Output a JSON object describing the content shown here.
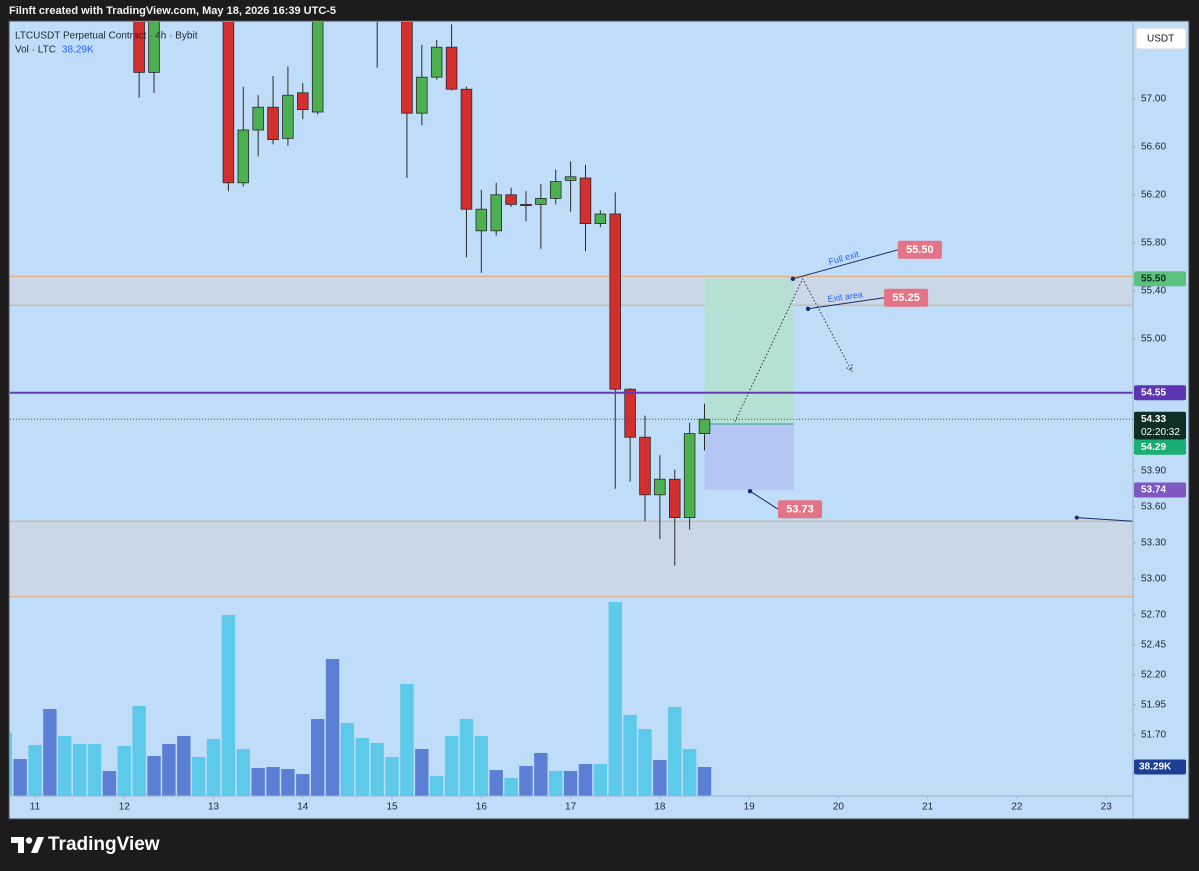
{
  "header": {
    "text": "Filnft created with TradingView.com, May 18, 2026 16:39 UTC-5"
  },
  "footer": {
    "brand": "TradingView"
  },
  "chart_data": {
    "type": "candlestick",
    "title": "LTCUSDT Perpetual Contract · 4h · Bybit",
    "currency": "USDT",
    "x": [
      10.6667,
      10.8333,
      11,
      11.1667,
      11.3333,
      11.5,
      11.6667,
      11.8333,
      12,
      12.1667,
      12.3333,
      12.5,
      12.6667,
      12.8333,
      13,
      13.1667,
      13.3333,
      13.5,
      13.6667,
      13.8333,
      14,
      14.1667,
      14.3333,
      14.5,
      14.6667,
      14.8333,
      15,
      15.1667,
      15.3333,
      15.5,
      15.6667,
      15.8333,
      16,
      16.1667,
      16.3333,
      16.5,
      16.6667,
      16.8333,
      17,
      17.1667,
      17.3333,
      17.5,
      17.6667,
      17.8333,
      18,
      18.1667,
      18.3333,
      18.5
    ],
    "open": [
      null,
      null,
      null,
      null,
      null,
      null,
      null,
      null,
      null,
      57.75,
      57.22,
      null,
      null,
      null,
      null,
      57.75,
      56.3,
      56.74,
      56.93,
      56.67,
      57.05,
      56.89,
      null,
      null,
      null,
      57.85,
      null,
      57.75,
      56.88,
      57.18,
      57.43,
      57.08,
      55.9,
      55.9,
      56.2,
      56.12,
      56.12,
      56.17,
      56.32,
      56.34,
      55.96,
      56.04,
      54.58,
      54.18,
      53.7,
      53.83,
      53.51,
      54.21
    ],
    "high": [
      null,
      null,
      null,
      null,
      null,
      null,
      null,
      null,
      null,
      57.9,
      57.9,
      null,
      null,
      null,
      null,
      57.9,
      57.1,
      57.03,
      57.19,
      57.27,
      57.13,
      57.9,
      null,
      null,
      null,
      57.9,
      null,
      57.9,
      57.45,
      57.49,
      57.62,
      57.1,
      56.24,
      56.3,
      56.26,
      56.23,
      56.29,
      56.41,
      56.48,
      56.45,
      56.07,
      56.22,
      54.59,
      54.36,
      54.03,
      53.91,
      54.3,
      54.46
    ],
    "low": [
      null,
      null,
      null,
      null,
      null,
      null,
      null,
      null,
      null,
      57.01,
      57.05,
      null,
      null,
      null,
      null,
      56.23,
      56.27,
      56.52,
      56.62,
      56.61,
      56.83,
      56.87,
      null,
      null,
      null,
      57.26,
      null,
      56.34,
      56.78,
      57.16,
      57.07,
      55.68,
      55.55,
      55.86,
      56.1,
      55.98,
      55.75,
      56.12,
      56.06,
      55.73,
      55.93,
      53.75,
      53.81,
      53.48,
      53.33,
      53.11,
      53.41,
      54.07
    ],
    "close": [
      null,
      null,
      null,
      null,
      null,
      null,
      null,
      null,
      null,
      57.22,
      57.75,
      null,
      null,
      null,
      null,
      56.3,
      56.74,
      56.93,
      56.66,
      57.03,
      56.91,
      57.75,
      null,
      null,
      null,
      57.78,
      null,
      56.88,
      57.18,
      57.43,
      57.08,
      56.08,
      56.08,
      56.2,
      56.12,
      56.11,
      56.17,
      56.31,
      56.35,
      55.96,
      56.04,
      54.58,
      54.18,
      53.7,
      53.83,
      53.51,
      54.21,
      54.33
    ],
    "up_color": "#4caf50",
    "down_color": "#d32f2f",
    "wick_color": "#2a2a2a",
    "volume": {
      "name": "Vol · LTC",
      "axis": "y2",
      "values": [
        83200,
        48800,
        67300,
        114800,
        79200,
        68600,
        68600,
        33000,
        66000,
        118800,
        52800,
        68600,
        79200,
        51500,
        75200,
        238900,
        62000,
        37000,
        38300,
        35600,
        29000,
        101600,
        180800,
        96400,
        76600,
        70000,
        51500,
        147800,
        62000,
        26400,
        79200,
        101600,
        79200,
        34300,
        23800,
        39600,
        56800,
        33000,
        33000,
        42200,
        42200,
        256100,
        106900,
        88400,
        47500,
        117500,
        62000,
        38290
      ],
      "value_labels": [
        null,
        null,
        null,
        null,
        null,
        null,
        null,
        null,
        null,
        null,
        null,
        null,
        null,
        null,
        null,
        null,
        null,
        null,
        null,
        null,
        null,
        null,
        null,
        null,
        null,
        null,
        null,
        null,
        null,
        null,
        null,
        null,
        null,
        null,
        null,
        null,
        null,
        null,
        null,
        null,
        null,
        null,
        null,
        null,
        null,
        null,
        null,
        "38.29K"
      ],
      "colors": [
        "#5ccae8",
        "#5b7fd4",
        "#5ccae8",
        "#5b7fd4",
        "#5ccae8",
        "#5ccae8",
        "#5ccae8",
        "#5b7fd4",
        "#5ccae8",
        "#5ccae8",
        "#5b7fd4",
        "#5b7fd4",
        "#5b7fd4",
        "#5ccae8",
        "#5ccae8",
        "#5ccae8",
        "#5ccae8",
        "#5b7fd4",
        "#5b7fd4",
        "#5b7fd4",
        "#5b7fd4",
        "#5b7fd4",
        "#5b7fd4",
        "#5ccae8",
        "#5ccae8",
        "#5ccae8",
        "#5ccae8",
        "#5ccae8",
        "#5b7fd4",
        "#5ccae8",
        "#5ccae8",
        "#5ccae8",
        "#5ccae8",
        "#5b7fd4",
        "#5ccae8",
        "#5b7fd4",
        "#5b7fd4",
        "#5ccae8",
        "#5b7fd4",
        "#5b7fd4",
        "#5ccae8",
        "#5ccae8",
        "#5ccae8",
        "#5ccae8",
        "#5b7fd4",
        "#5ccae8",
        "#5ccae8",
        "#5b7fd4"
      ],
      "label_color": "#1c3f94"
    },
    "xlim": [
      10.72,
      23.3
    ],
    "xticks": [
      11,
      12,
      13,
      14,
      15,
      16,
      17,
      18,
      19,
      20,
      21,
      22,
      23
    ],
    "ylim": [
      51.19,
      57.64
    ],
    "yticks": [
      {
        "value": 57,
        "label": "57.00"
      },
      {
        "value": 56.6,
        "label": "56.60"
      },
      {
        "value": 56.2,
        "label": "56.20"
      },
      {
        "value": 55.8,
        "label": "55.80"
      },
      {
        "value": 55.4,
        "label": "55.40"
      },
      {
        "value": 55,
        "label": "55.00"
      },
      {
        "value": 53.9,
        "label": "53.90"
      },
      {
        "value": 53.6,
        "label": "53.60"
      },
      {
        "value": 53.3,
        "label": "53.30"
      },
      {
        "value": 53,
        "label": "53.00"
      },
      {
        "value": 52.7,
        "label": "52.70"
      },
      {
        "value": 52.45,
        "label": "52.45"
      },
      {
        "value": 52.2,
        "label": "52.20"
      },
      {
        "value": 51.95,
        "label": "51.95"
      },
      {
        "value": 51.7,
        "label": "51.70"
      }
    ],
    "y2lim": [
      0,
      1021700
    ],
    "background": "#bfdcf8",
    "zones": [
      {
        "from": 55.28,
        "to": 55.52,
        "fill": "#cad6e3",
        "border": "#e0a96d"
      },
      {
        "from": 52.85,
        "to": 53.48,
        "fill": "#cad6e3",
        "border": "#e0a96d"
      }
    ],
    "levels": [
      {
        "value": 54.55,
        "color": "#673ab7",
        "style": "solid"
      },
      {
        "value": 54.33,
        "color": "#4a4a4a",
        "style": "dotted"
      }
    ],
    "position": {
      "x": [
        18.5,
        19.5
      ],
      "target": 55.5,
      "entry": 54.29,
      "stop": 53.74,
      "profit_color": "#b3e2cf",
      "loss_color": "#b4c3f4",
      "entry_color": "#26a69a"
    },
    "projection": {
      "x": [
        18.84,
        19.6,
        20.15
      ],
      "y": [
        54.31,
        55.5,
        54.73
      ]
    },
    "trendline": {
      "x": [
        22.67,
        23.3
      ],
      "y": [
        53.51,
        53.48
      ]
    },
    "annotations": [
      {
        "text": "Full exit",
        "x": 19.49,
        "price": {
          "value": 55.5,
          "label": "55.50"
        }
      },
      {
        "text": "Exit area",
        "x": 19.66,
        "price": {
          "value": 55.25,
          "label": "55.25"
        }
      },
      {
        "x": 19.01,
        "price": {
          "value": 53.73,
          "label": "53.73"
        }
      }
    ],
    "annotation_color": "#e57386",
    "price_labels": [
      {
        "value": 55.5,
        "label": "55.50",
        "color": "#5ac17e",
        "text_color": "#0f2a17"
      },
      {
        "value": 54.55,
        "label": "54.55",
        "color": "#5e35b1",
        "text_color": "#ffffff"
      },
      {
        "value": 54.33,
        "label": "54.33",
        "countdown": "02:20:32",
        "color": "#0f2f25",
        "text_color": "#ffffff"
      },
      {
        "value": 54.29,
        "label": "54.29",
        "color": "#1bae73",
        "text_color": "#ffffff"
      },
      {
        "value": 53.74,
        "label": "53.74",
        "color": "#7e57c2",
        "text_color": "#ffffff"
      }
    ]
  }
}
